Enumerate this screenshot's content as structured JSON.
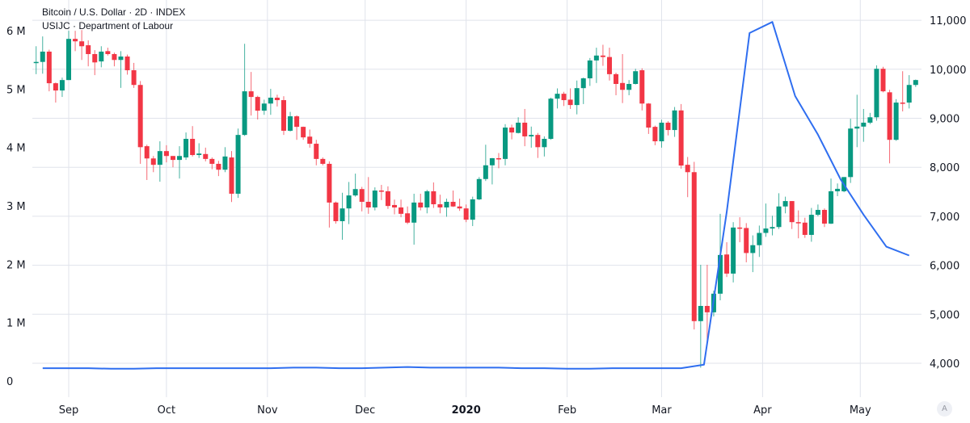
{
  "legend": {
    "main_series": "Bitcoin / U.S. Dollar · 2D · INDEX",
    "overlay_series": "USIJC · Department of Labour"
  },
  "auto_scale_button": "A",
  "colors": {
    "up": "#089981",
    "down": "#f23645",
    "overlay_line": "#2f6ef0",
    "grid": "#e0e3eb"
  },
  "chart_data": [
    {
      "type": "candlestick",
      "name": "Bitcoin / U.S. Dollar · 2D · INDEX",
      "axis": "right",
      "ylim": [
        4000,
        11000
      ],
      "y_tick_labels": [
        "4,000",
        "5,000",
        "6,000",
        "7,000",
        "8,000",
        "9,000",
        "10,000",
        "11,000"
      ],
      "y_ticks": [
        4000,
        5000,
        6000,
        7000,
        8000,
        9000,
        10000,
        11000
      ],
      "dates": [
        "2019-08-22",
        "2019-08-24",
        "2019-08-26",
        "2019-08-28",
        "2019-08-30",
        "2019-09-01",
        "2019-09-03",
        "2019-09-05",
        "2019-09-07",
        "2019-09-09",
        "2019-09-11",
        "2019-09-13",
        "2019-09-15",
        "2019-09-17",
        "2019-09-19",
        "2019-09-21",
        "2019-09-23",
        "2019-09-25",
        "2019-09-27",
        "2019-09-29",
        "2019-10-01",
        "2019-10-03",
        "2019-10-05",
        "2019-10-07",
        "2019-10-09",
        "2019-10-11",
        "2019-10-13",
        "2019-10-15",
        "2019-10-17",
        "2019-10-19",
        "2019-10-21",
        "2019-10-23",
        "2019-10-25",
        "2019-10-27",
        "2019-10-29",
        "2019-10-31",
        "2019-11-02",
        "2019-11-04",
        "2019-11-06",
        "2019-11-08",
        "2019-11-10",
        "2019-11-12",
        "2019-11-14",
        "2019-11-16",
        "2019-11-18",
        "2019-11-20",
        "2019-11-22",
        "2019-11-24",
        "2019-11-26",
        "2019-11-28",
        "2019-11-30",
        "2019-12-02",
        "2019-12-04",
        "2019-12-06",
        "2019-12-08",
        "2019-12-10",
        "2019-12-12",
        "2019-12-14",
        "2019-12-16",
        "2019-12-18",
        "2019-12-20",
        "2019-12-22",
        "2019-12-24",
        "2019-12-26",
        "2019-12-28",
        "2019-12-30",
        "2020-01-01",
        "2020-01-03",
        "2020-01-05",
        "2020-01-07",
        "2020-01-09",
        "2020-01-11",
        "2020-01-13",
        "2020-01-15",
        "2020-01-17",
        "2020-01-19",
        "2020-01-21",
        "2020-01-23",
        "2020-01-25",
        "2020-01-27",
        "2020-01-29",
        "2020-01-31",
        "2020-02-02",
        "2020-02-04",
        "2020-02-06",
        "2020-02-08",
        "2020-02-10",
        "2020-02-12",
        "2020-02-14",
        "2020-02-16",
        "2020-02-18",
        "2020-02-20",
        "2020-02-22",
        "2020-02-24",
        "2020-02-26",
        "2020-02-28",
        "2020-03-01",
        "2020-03-03",
        "2020-03-05",
        "2020-03-07",
        "2020-03-09",
        "2020-03-11",
        "2020-03-13",
        "2020-03-15",
        "2020-03-17",
        "2020-03-19",
        "2020-03-21",
        "2020-03-23",
        "2020-03-25",
        "2020-03-27",
        "2020-03-29",
        "2020-03-31",
        "2020-04-02",
        "2020-04-04",
        "2020-04-06",
        "2020-04-08",
        "2020-04-10",
        "2020-04-12",
        "2020-04-14",
        "2020-04-16",
        "2020-04-18",
        "2020-04-20",
        "2020-04-22",
        "2020-04-24",
        "2020-04-26",
        "2020-04-28",
        "2020-04-30",
        "2020-05-02",
        "2020-05-04",
        "2020-05-06",
        "2020-05-08",
        "2020-05-10",
        "2020-05-12",
        "2020-05-14",
        "2020-05-16",
        "2020-05-18"
      ],
      "ohlc": [
        [
          10130,
          10470,
          9900,
          10150
        ],
        [
          10150,
          10670,
          9910,
          10360
        ],
        [
          10360,
          10400,
          9550,
          9715
        ],
        [
          9715,
          9730,
          9320,
          9567
        ],
        [
          9567,
          9830,
          9435,
          9780
        ],
        [
          9780,
          10785,
          9780,
          10620
        ],
        [
          10620,
          10785,
          10370,
          10570
        ],
        [
          10570,
          10800,
          10190,
          10470
        ],
        [
          10490,
          10590,
          10060,
          10310
        ],
        [
          10310,
          10390,
          9880,
          10140
        ],
        [
          10160,
          10470,
          10040,
          10360
        ],
        [
          10370,
          10440,
          10280,
          10310
        ],
        [
          10310,
          10340,
          10060,
          10190
        ],
        [
          10190,
          10370,
          9620,
          10260
        ],
        [
          10260,
          10300,
          9890,
          9980
        ],
        [
          9980,
          10130,
          9620,
          9680
        ],
        [
          9680,
          9760,
          8070,
          8410
        ],
        [
          8430,
          8460,
          7740,
          8180
        ],
        [
          8180,
          8230,
          7900,
          8050
        ],
        [
          8050,
          8530,
          7705,
          8330
        ],
        [
          8330,
          8450,
          8100,
          8230
        ],
        [
          8230,
          8230,
          8000,
          8150
        ],
        [
          8150,
          8430,
          7770,
          8230
        ],
        [
          8200,
          8710,
          8150,
          8580
        ],
        [
          8580,
          8840,
          8220,
          8250
        ],
        [
          8250,
          8490,
          8190,
          8280
        ],
        [
          8270,
          8400,
          8120,
          8170
        ],
        [
          8170,
          8200,
          7960,
          8070
        ],
        [
          8070,
          8130,
          7820,
          7950
        ],
        [
          7950,
          8410,
          7900,
          8220
        ],
        [
          8200,
          8330,
          7290,
          7460
        ],
        [
          7460,
          8790,
          7375,
          8660
        ],
        [
          8660,
          10520,
          8640,
          9550
        ],
        [
          9550,
          9945,
          9055,
          9435
        ],
        [
          9435,
          9460,
          8975,
          9155
        ],
        [
          9155,
          9380,
          9070,
          9300
        ],
        [
          9300,
          9600,
          9070,
          9420
        ],
        [
          9420,
          9480,
          9240,
          9370
        ],
        [
          9370,
          9450,
          8660,
          8745
        ],
        [
          8745,
          9130,
          8730,
          9040
        ],
        [
          9040,
          9060,
          8560,
          8825
        ],
        [
          8825,
          8830,
          8560,
          8610
        ],
        [
          8625,
          8770,
          8400,
          8480
        ],
        [
          8480,
          8560,
          8040,
          8170
        ],
        [
          8170,
          8200,
          8040,
          8070
        ],
        [
          8070,
          8120,
          6770,
          7280
        ],
        [
          7280,
          7300,
          6850,
          6900
        ],
        [
          6900,
          7480,
          6520,
          7160
        ],
        [
          7160,
          7700,
          6840,
          7425
        ],
        [
          7425,
          7870,
          7400,
          7555
        ],
        [
          7555,
          7600,
          7100,
          7295
        ],
        [
          7295,
          7800,
          7050,
          7180
        ],
        [
          7180,
          7590,
          7120,
          7525
        ],
        [
          7525,
          7640,
          7330,
          7510
        ],
        [
          7510,
          7610,
          7150,
          7210
        ],
        [
          7230,
          7340,
          7040,
          7180
        ],
        [
          7180,
          7340,
          6980,
          7050
        ],
        [
          7060,
          7200,
          6840,
          6870
        ],
        [
          6870,
          7460,
          6420,
          7280
        ],
        [
          7280,
          7460,
          7120,
          7180
        ],
        [
          7180,
          7540,
          7060,
          7510
        ],
        [
          7510,
          7690,
          7170,
          7245
        ],
        [
          7245,
          7440,
          7060,
          7180
        ],
        [
          7180,
          7360,
          6990,
          7295
        ],
        [
          7295,
          7525,
          7190,
          7200
        ],
        [
          7200,
          7360,
          7110,
          7160
        ],
        [
          7160,
          7240,
          6880,
          6930
        ],
        [
          6930,
          7400,
          6800,
          7345
        ],
        [
          7345,
          7800,
          7330,
          7760
        ],
        [
          7760,
          8460,
          7720,
          8040
        ],
        [
          8040,
          8190,
          7650,
          8185
        ],
        [
          8185,
          8290,
          7980,
          8170
        ],
        [
          8170,
          8880,
          8040,
          8810
        ],
        [
          8810,
          8870,
          8570,
          8710
        ],
        [
          8700,
          9020,
          8690,
          8910
        ],
        [
          8910,
          9190,
          8430,
          8630
        ],
        [
          8630,
          8830,
          8400,
          8660
        ],
        [
          8660,
          8700,
          8190,
          8410
        ],
        [
          8410,
          8630,
          8220,
          8580
        ],
        [
          8580,
          9420,
          8560,
          9400
        ],
        [
          9400,
          9610,
          9200,
          9500
        ],
        [
          9500,
          9540,
          9250,
          9370
        ],
        [
          9380,
          9610,
          9190,
          9270
        ],
        [
          9270,
          9770,
          9080,
          9615
        ],
        [
          9615,
          9830,
          9290,
          9815
        ],
        [
          9815,
          10230,
          9660,
          10180
        ],
        [
          10180,
          10440,
          9720,
          10280
        ],
        [
          10280,
          10500,
          10070,
          10250
        ],
        [
          10250,
          10440,
          9770,
          9900
        ],
        [
          9900,
          9930,
          9470,
          9700
        ],
        [
          9720,
          10310,
          9310,
          9580
        ],
        [
          9580,
          9780,
          9470,
          9700
        ],
        [
          9700,
          10010,
          9690,
          9960
        ],
        [
          9980,
          10020,
          9160,
          9300
        ],
        [
          9300,
          9310,
          8680,
          8810
        ],
        [
          8825,
          8850,
          8450,
          8530
        ],
        [
          8530,
          8970,
          8400,
          8910
        ],
        [
          8910,
          8940,
          8650,
          8760
        ],
        [
          8760,
          9230,
          8620,
          9160
        ],
        [
          9160,
          9290,
          7970,
          8035
        ],
        [
          8050,
          8210,
          7390,
          7900
        ],
        [
          7900,
          8110,
          4690,
          4860
        ],
        [
          4860,
          6010,
          3910,
          5170
        ],
        [
          5170,
          6010,
          4410,
          5040
        ],
        [
          5040,
          5480,
          4955,
          5420
        ],
        [
          5420,
          7050,
          5285,
          6210
        ],
        [
          6220,
          6470,
          5760,
          5830
        ],
        [
          5830,
          6880,
          5650,
          6770
        ],
        [
          6770,
          6980,
          6470,
          6760
        ],
        [
          6760,
          6860,
          6060,
          6250
        ],
        [
          6250,
          6610,
          5860,
          6410
        ],
        [
          6410,
          6810,
          6170,
          6660
        ],
        [
          6660,
          7260,
          6580,
          6750
        ],
        [
          6750,
          7010,
          6610,
          6780
        ],
        [
          6780,
          7470,
          6740,
          7200
        ],
        [
          7200,
          7400,
          7060,
          7310
        ],
        [
          7310,
          7310,
          6740,
          6880
        ],
        [
          6880,
          7120,
          6550,
          6870
        ],
        [
          6870,
          6970,
          6560,
          6620
        ],
        [
          6620,
          7170,
          6480,
          7030
        ],
        [
          7030,
          7240,
          7000,
          7130
        ],
        [
          7130,
          7160,
          6780,
          6850
        ],
        [
          6850,
          7770,
          6840,
          7510
        ],
        [
          7510,
          7670,
          7410,
          7560
        ],
        [
          7510,
          7800,
          7490,
          7800
        ],
        [
          7800,
          8990,
          7680,
          8790
        ],
        [
          8790,
          9480,
          8410,
          8830
        ],
        [
          8830,
          9190,
          8520,
          8910
        ],
        [
          8910,
          9110,
          8880,
          9020
        ],
        [
          9020,
          10080,
          8950,
          10010
        ],
        [
          10010,
          10050,
          9530,
          9550
        ],
        [
          9530,
          9580,
          8080,
          8560
        ],
        [
          8560,
          9390,
          8540,
          9320
        ],
        [
          9320,
          9960,
          9140,
          9310
        ],
        [
          9320,
          9880,
          9200,
          9680
        ],
        [
          9680,
          9790,
          9640,
          9780
        ]
      ]
    },
    {
      "type": "line",
      "name": "USIJC · Department of Labour",
      "axis": "left",
      "unit": "M",
      "ylim": [
        0,
        6
      ],
      "y_tick_labels": [
        "0",
        "1 M",
        "2 M",
        "3 M",
        "4 M",
        "5 M",
        "6 M"
      ],
      "y_ticks": [
        0,
        1,
        2,
        3,
        4,
        5,
        6
      ],
      "dates": [
        "2019-08-24",
        "2019-08-31",
        "2019-09-07",
        "2019-09-14",
        "2019-09-21",
        "2019-09-28",
        "2019-10-05",
        "2019-10-12",
        "2019-10-19",
        "2019-10-26",
        "2019-11-02",
        "2019-11-09",
        "2019-11-16",
        "2019-11-23",
        "2019-11-30",
        "2019-12-07",
        "2019-12-14",
        "2019-12-21",
        "2019-12-28",
        "2020-01-04",
        "2020-01-11",
        "2020-01-18",
        "2020-01-25",
        "2020-02-01",
        "2020-02-08",
        "2020-02-15",
        "2020-02-22",
        "2020-02-29",
        "2020-03-07",
        "2020-03-14",
        "2020-03-21",
        "2020-03-28",
        "2020-04-04",
        "2020-04-11",
        "2020-04-18",
        "2020-04-25",
        "2020-05-02",
        "2020-05-09",
        "2020-05-16"
      ],
      "values": [
        0.22,
        0.22,
        0.22,
        0.21,
        0.21,
        0.22,
        0.22,
        0.22,
        0.22,
        0.22,
        0.22,
        0.23,
        0.23,
        0.22,
        0.22,
        0.23,
        0.24,
        0.23,
        0.23,
        0.23,
        0.23,
        0.22,
        0.22,
        0.21,
        0.21,
        0.22,
        0.22,
        0.22,
        0.22,
        0.28,
        2.9,
        5.96,
        6.15,
        4.88,
        4.22,
        3.45,
        2.85,
        2.3,
        2.15
      ]
    }
  ],
  "x_axis": {
    "type": "date",
    "ticks": [
      {
        "label": "Sep",
        "date": "2019-09-01",
        "bold": false
      },
      {
        "label": "Oct",
        "date": "2019-10-01",
        "bold": false
      },
      {
        "label": "Nov",
        "date": "2019-11-01",
        "bold": false
      },
      {
        "label": "Dec",
        "date": "2019-12-01",
        "bold": false
      },
      {
        "label": "2020",
        "date": "2020-01-01",
        "bold": true
      },
      {
        "label": "Feb",
        "date": "2020-02-01",
        "bold": false
      },
      {
        "label": "Mar",
        "date": "2020-03-01",
        "bold": false
      },
      {
        "label": "Apr",
        "date": "2020-04-01",
        "bold": false
      },
      {
        "label": "May",
        "date": "2020-05-01",
        "bold": false
      }
    ]
  },
  "grid": true
}
